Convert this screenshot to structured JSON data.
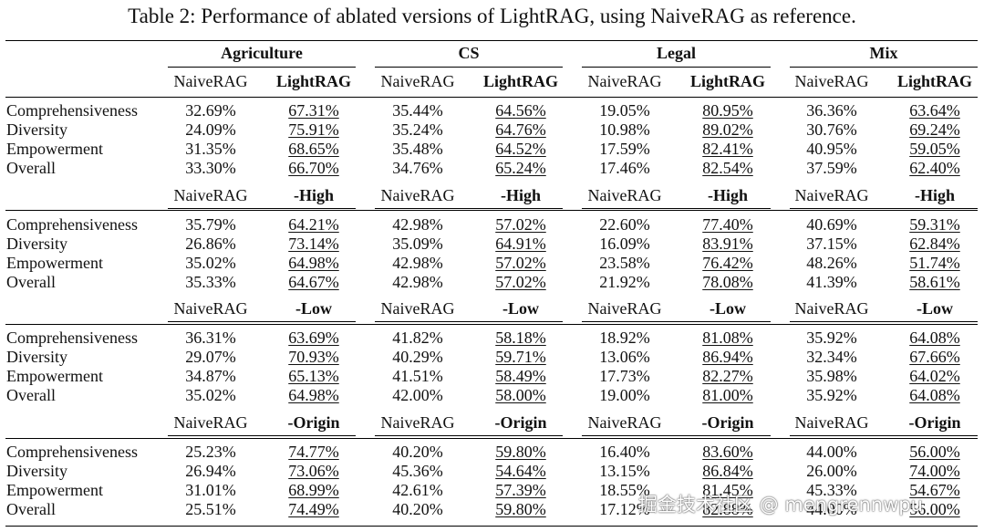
{
  "caption": "Table 2: Performance of ablated versions of LightRAG, using NaiveRAG as reference.",
  "domains": [
    "Agriculture",
    "CS",
    "Legal",
    "Mix"
  ],
  "baseline_label": "NaiveRAG",
  "metrics": [
    "Comprehensiveness",
    "Diversity",
    "Empowerment",
    "Overall"
  ],
  "blocks": [
    {
      "variant": "LightRAG",
      "rows": [
        [
          "32.69%",
          "67.31%",
          "35.44%",
          "64.56%",
          "19.05%",
          "80.95%",
          "36.36%",
          "63.64%"
        ],
        [
          "24.09%",
          "75.91%",
          "35.24%",
          "64.76%",
          "10.98%",
          "89.02%",
          "30.76%",
          "69.24%"
        ],
        [
          "31.35%",
          "68.65%",
          "35.48%",
          "64.52%",
          "17.59%",
          "82.41%",
          "40.95%",
          "59.05%"
        ],
        [
          "33.30%",
          "66.70%",
          "34.76%",
          "65.24%",
          "17.46%",
          "82.54%",
          "37.59%",
          "62.40%"
        ]
      ]
    },
    {
      "variant": "-High",
      "rows": [
        [
          "35.79%",
          "64.21%",
          "42.98%",
          "57.02%",
          "22.60%",
          "77.40%",
          "40.69%",
          "59.31%"
        ],
        [
          "26.86%",
          "73.14%",
          "35.09%",
          "64.91%",
          "16.09%",
          "83.91%",
          "37.15%",
          "62.84%"
        ],
        [
          "35.02%",
          "64.98%",
          "42.98%",
          "57.02%",
          "23.58%",
          "76.42%",
          "48.26%",
          "51.74%"
        ],
        [
          "35.33%",
          "64.67%",
          "42.98%",
          "57.02%",
          "21.92%",
          "78.08%",
          "41.39%",
          "58.61%"
        ]
      ]
    },
    {
      "variant": "-Low",
      "rows": [
        [
          "36.31%",
          "63.69%",
          "41.82%",
          "58.18%",
          "18.92%",
          "81.08%",
          "35.92%",
          "64.08%"
        ],
        [
          "29.07%",
          "70.93%",
          "40.29%",
          "59.71%",
          "13.06%",
          "86.94%",
          "32.34%",
          "67.66%"
        ],
        [
          "34.87%",
          "65.13%",
          "41.51%",
          "58.49%",
          "17.73%",
          "82.27%",
          "35.98%",
          "64.02%"
        ],
        [
          "35.02%",
          "64.98%",
          "42.00%",
          "58.00%",
          "19.00%",
          "81.00%",
          "35.92%",
          "64.08%"
        ]
      ]
    },
    {
      "variant": "-Origin",
      "rows": [
        [
          "25.23%",
          "74.77%",
          "40.20%",
          "59.80%",
          "16.40%",
          "83.60%",
          "44.00%",
          "56.00%"
        ],
        [
          "26.94%",
          "73.06%",
          "45.36%",
          "54.64%",
          "13.15%",
          "86.84%",
          "26.00%",
          "74.00%"
        ],
        [
          "31.01%",
          "68.99%",
          "42.61%",
          "57.39%",
          "18.55%",
          "81.45%",
          "45.33%",
          "54.67%"
        ],
        [
          "25.51%",
          "74.49%",
          "40.20%",
          "59.80%",
          "17.12%",
          "82.88%",
          "44.00%",
          "56.00%"
        ]
      ]
    }
  ],
  "watermark": "掘金技术社区 @ mengrennwpu"
}
